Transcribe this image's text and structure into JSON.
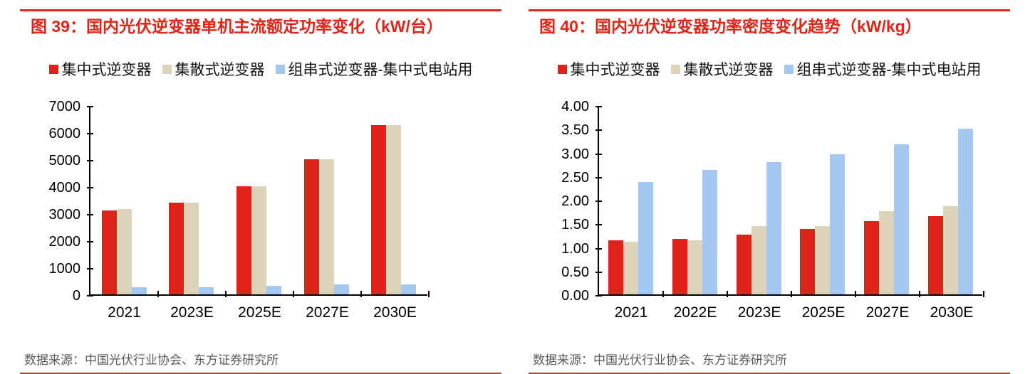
{
  "accent": {
    "title_red": "#e02519",
    "top_rule_red": "#e02519",
    "bottom_rule_red": "#b3493f",
    "source_gray": "#595959",
    "axis_black": "#000000"
  },
  "source_note": "数据来源：中国光伏行业协会、东方证券研究所",
  "chart_data": [
    {
      "type": "bar",
      "title": "图 39：国内光伏逆变器单机主流额定功率变化（kW/台）",
      "categories": [
        "2021",
        "2023E",
        "2025E",
        "2027E",
        "2030E"
      ],
      "series": [
        {
          "name": "集中式逆变器",
          "color": "#e0231a",
          "values": [
            3100,
            3400,
            4000,
            5000,
            6250
          ]
        },
        {
          "name": "集散式逆变器",
          "color": "#dcd4b8",
          "values": [
            3150,
            3400,
            4000,
            5000,
            6250
          ]
        },
        {
          "name": "组串式逆变器-集中式电站用",
          "color": "#a4c8f1",
          "values": [
            250,
            270,
            320,
            360,
            380
          ]
        }
      ],
      "ylim": [
        0,
        7000
      ],
      "ytick_step": 1000,
      "ytick_labels": [
        "0",
        "1000",
        "2000",
        "3000",
        "4000",
        "5000",
        "6000",
        "7000"
      ],
      "legend_position": "top",
      "grid": false,
      "source": "数据来源：中国光伏行业协会、东方证券研究所"
    },
    {
      "type": "bar",
      "title": "图 40：国内光伏逆变器功率密度变化趋势（kW/kg）",
      "categories": [
        "2021",
        "2022E",
        "2023E",
        "2025E",
        "2027E",
        "2030E"
      ],
      "series": [
        {
          "name": "集中式逆变器",
          "color": "#e0231a",
          "values": [
            1.15,
            1.17,
            1.27,
            1.38,
            1.55,
            1.65
          ]
        },
        {
          "name": "集散式逆变器",
          "color": "#dcd4b8",
          "values": [
            1.12,
            1.14,
            1.45,
            1.45,
            1.76,
            1.86
          ]
        },
        {
          "name": "组串式逆变器-集中式电站用",
          "color": "#a4c8f1",
          "values": [
            2.38,
            2.63,
            2.8,
            2.96,
            3.18,
            3.5
          ]
        }
      ],
      "ylim": [
        0,
        4
      ],
      "ytick_step": 0.5,
      "ytick_labels": [
        "0.00",
        "0.50",
        "1.00",
        "1.50",
        "2.00",
        "2.50",
        "3.00",
        "3.50",
        "4.00"
      ],
      "legend_position": "top",
      "grid": false,
      "source": "数据来源：中国光伏行业协会、东方证券研究所"
    }
  ]
}
